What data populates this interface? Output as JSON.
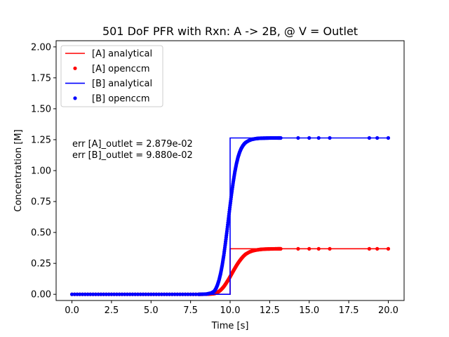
{
  "chart_data": {
    "type": "line",
    "title": "501 DoF PFR with Rxn: A -> 2B, @ V = Outlet",
    "xlabel": "Time [s]",
    "ylabel": "Concentration [M]",
    "xlim": [
      -1.0,
      21.0
    ],
    "ylim": [
      -0.05,
      2.05
    ],
    "xticks": [
      0.0,
      2.5,
      5.0,
      7.5,
      10.0,
      12.5,
      15.0,
      17.5,
      20.0
    ],
    "yticks": [
      0.0,
      0.25,
      0.5,
      0.75,
      1.0,
      1.25,
      1.5,
      1.75,
      2.0
    ],
    "xtick_labels": [
      "0.0",
      "2.5",
      "5.0",
      "7.5",
      "10.0",
      "12.5",
      "15.0",
      "17.5",
      "20.0"
    ],
    "ytick_labels": [
      "0.00",
      "0.25",
      "0.50",
      "0.75",
      "1.00",
      "1.25",
      "1.50",
      "1.75",
      "2.00"
    ],
    "grid": false,
    "legend_position": "top-left",
    "annotations": [
      "err [A]_outlet = 2.879e-02",
      "err [B]_outlet = 9.880e-02"
    ],
    "series": [
      {
        "name": "[A] analytical",
        "kind": "line",
        "color": "#ff0000",
        "x": [
          0.0,
          10.0,
          10.0,
          20.0
        ],
        "y": [
          0.0,
          0.0,
          0.368,
          0.368
        ]
      },
      {
        "name": "[A] openccm",
        "kind": "scatter",
        "color": "#ff0000",
        "x": [
          0.0,
          1.0,
          2.0,
          3.0,
          4.0,
          5.0,
          6.0,
          7.0,
          8.0,
          8.5,
          8.8,
          9.0,
          9.1,
          9.2,
          9.3,
          9.4,
          9.5,
          9.6,
          9.7,
          9.8,
          9.9,
          10.0,
          10.1,
          10.2,
          10.3,
          10.4,
          10.5,
          10.6,
          10.7,
          10.8,
          10.9,
          11.0,
          11.2,
          11.4,
          11.6,
          11.8,
          12.0,
          12.3,
          12.6,
          13.0,
          13.2,
          14.3,
          15.0,
          15.6,
          16.3,
          18.8,
          19.3,
          20.0
        ],
        "y": [
          0.0,
          0.0,
          0.0,
          0.0,
          0.0,
          0.0,
          0.0,
          0.0,
          0.0,
          0.001,
          0.003,
          0.006,
          0.01,
          0.016,
          0.024,
          0.034,
          0.047,
          0.062,
          0.08,
          0.1,
          0.12,
          0.142,
          0.165,
          0.188,
          0.21,
          0.232,
          0.252,
          0.27,
          0.287,
          0.302,
          0.315,
          0.326,
          0.341,
          0.351,
          0.357,
          0.361,
          0.364,
          0.366,
          0.367,
          0.368,
          0.368,
          0.368,
          0.368,
          0.368,
          0.368,
          0.368,
          0.368,
          0.368
        ]
      },
      {
        "name": "[B] analytical",
        "kind": "line",
        "color": "#0000ff",
        "x": [
          0.0,
          10.0,
          10.0,
          20.0
        ],
        "y": [
          0.0,
          0.0,
          1.264,
          1.264
        ]
      },
      {
        "name": "[B] openccm",
        "kind": "scatter",
        "color": "#0000ff",
        "x": [
          0.0,
          1.0,
          2.0,
          3.0,
          4.0,
          5.0,
          6.0,
          7.0,
          8.0,
          8.5,
          8.8,
          9.0,
          9.1,
          9.2,
          9.3,
          9.4,
          9.5,
          9.6,
          9.7,
          9.8,
          9.9,
          10.0,
          10.1,
          10.2,
          10.3,
          10.4,
          10.5,
          10.6,
          10.7,
          10.8,
          10.9,
          11.0,
          11.2,
          11.4,
          11.6,
          11.8,
          12.0,
          12.3,
          12.6,
          13.0,
          13.2,
          14.3,
          15.0,
          15.6,
          16.3,
          18.8,
          19.3,
          20.0
        ],
        "y": [
          0.0,
          0.0,
          0.0,
          0.0,
          0.0,
          0.0,
          0.0,
          0.0,
          0.0,
          0.002,
          0.01,
          0.025,
          0.045,
          0.075,
          0.115,
          0.168,
          0.235,
          0.315,
          0.41,
          0.51,
          0.615,
          0.72,
          0.82,
          0.91,
          0.99,
          1.055,
          1.108,
          1.148,
          1.178,
          1.2,
          1.217,
          1.229,
          1.244,
          1.253,
          1.258,
          1.261,
          1.262,
          1.263,
          1.264,
          1.264,
          1.264,
          1.264,
          1.264,
          1.264,
          1.264,
          1.264,
          1.264,
          1.264
        ]
      }
    ]
  }
}
